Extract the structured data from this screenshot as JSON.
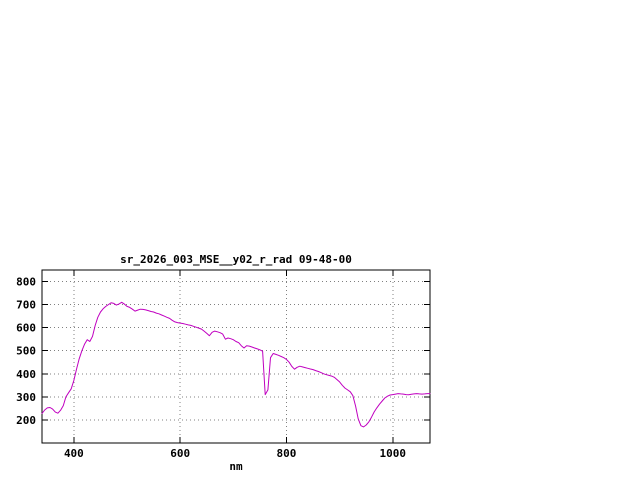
{
  "chart": {
    "line_color": "#c000c0",
    "grid_color": "#808080",
    "border_color": "#000000",
    "text_color": "#000000",
    "background": "#ffffff"
  },
  "chart_data": {
    "type": "line",
    "title": "sr_2026_003_MSE__y02_r_rad 09-48-00",
    "xlabel": "nm",
    "ylabel": "",
    "xlim": [
      340,
      1070
    ],
    "ylim": [
      100,
      850
    ],
    "x_ticks": [
      400,
      600,
      800,
      1000
    ],
    "y_ticks": [
      200,
      300,
      400,
      500,
      600,
      700,
      800
    ],
    "grid": true,
    "legend_position": "none",
    "series": [
      {
        "name": "sr_2026_003_MSE__y02_r_rad",
        "color": "#c000c0",
        "x": [
          340,
          345,
          350,
          355,
          360,
          365,
          370,
          375,
          380,
          385,
          390,
          395,
          400,
          405,
          410,
          415,
          420,
          425,
          430,
          435,
          440,
          445,
          450,
          455,
          460,
          465,
          470,
          475,
          480,
          485,
          490,
          495,
          500,
          505,
          510,
          515,
          520,
          525,
          530,
          535,
          540,
          545,
          550,
          555,
          560,
          565,
          570,
          575,
          580,
          585,
          590,
          595,
          600,
          605,
          610,
          615,
          620,
          625,
          630,
          635,
          640,
          645,
          650,
          655,
          660,
          665,
          670,
          675,
          680,
          685,
          690,
          695,
          700,
          705,
          710,
          715,
          720,
          725,
          730,
          735,
          740,
          745,
          750,
          755,
          760,
          765,
          770,
          775,
          780,
          785,
          790,
          795,
          800,
          805,
          810,
          815,
          820,
          825,
          830,
          835,
          840,
          845,
          850,
          855,
          860,
          865,
          870,
          875,
          880,
          885,
          890,
          895,
          900,
          905,
          910,
          915,
          920,
          925,
          930,
          935,
          940,
          945,
          950,
          955,
          960,
          965,
          970,
          975,
          980,
          985,
          990,
          995,
          1000,
          1005,
          1010,
          1015,
          1020,
          1025,
          1030,
          1035,
          1040,
          1045,
          1050,
          1055,
          1060,
          1065,
          1070
        ],
        "y": [
          228,
          243,
          252,
          254,
          247,
          234,
          229,
          242,
          262,
          300,
          318,
          335,
          372,
          420,
          465,
          500,
          528,
          548,
          540,
          562,
          610,
          645,
          668,
          682,
          692,
          700,
          708,
          705,
          698,
          703,
          710,
          702,
          692,
          688,
          680,
          672,
          676,
          680,
          679,
          677,
          674,
          670,
          668,
          663,
          660,
          655,
          650,
          645,
          640,
          632,
          625,
          622,
          620,
          618,
          615,
          612,
          610,
          606,
          602,
          598,
          594,
          585,
          575,
          565,
          580,
          585,
          582,
          578,
          572,
          550,
          555,
          552,
          548,
          540,
          535,
          522,
          512,
          522,
          520,
          516,
          512,
          508,
          504,
          498,
          310,
          330,
          470,
          488,
          484,
          480,
          475,
          470,
          462,
          450,
          432,
          420,
          428,
          433,
          430,
          427,
          424,
          421,
          418,
          414,
          410,
          405,
          400,
          396,
          393,
          390,
          385,
          375,
          365,
          350,
          338,
          330,
          322,
          305,
          260,
          205,
          175,
          170,
          178,
          192,
          212,
          235,
          252,
          268,
          282,
          295,
          303,
          308,
          310,
          312,
          314,
          313,
          312,
          310,
          309,
          311,
          313,
          314,
          313,
          312,
          313,
          314,
          314
        ]
      }
    ]
  }
}
